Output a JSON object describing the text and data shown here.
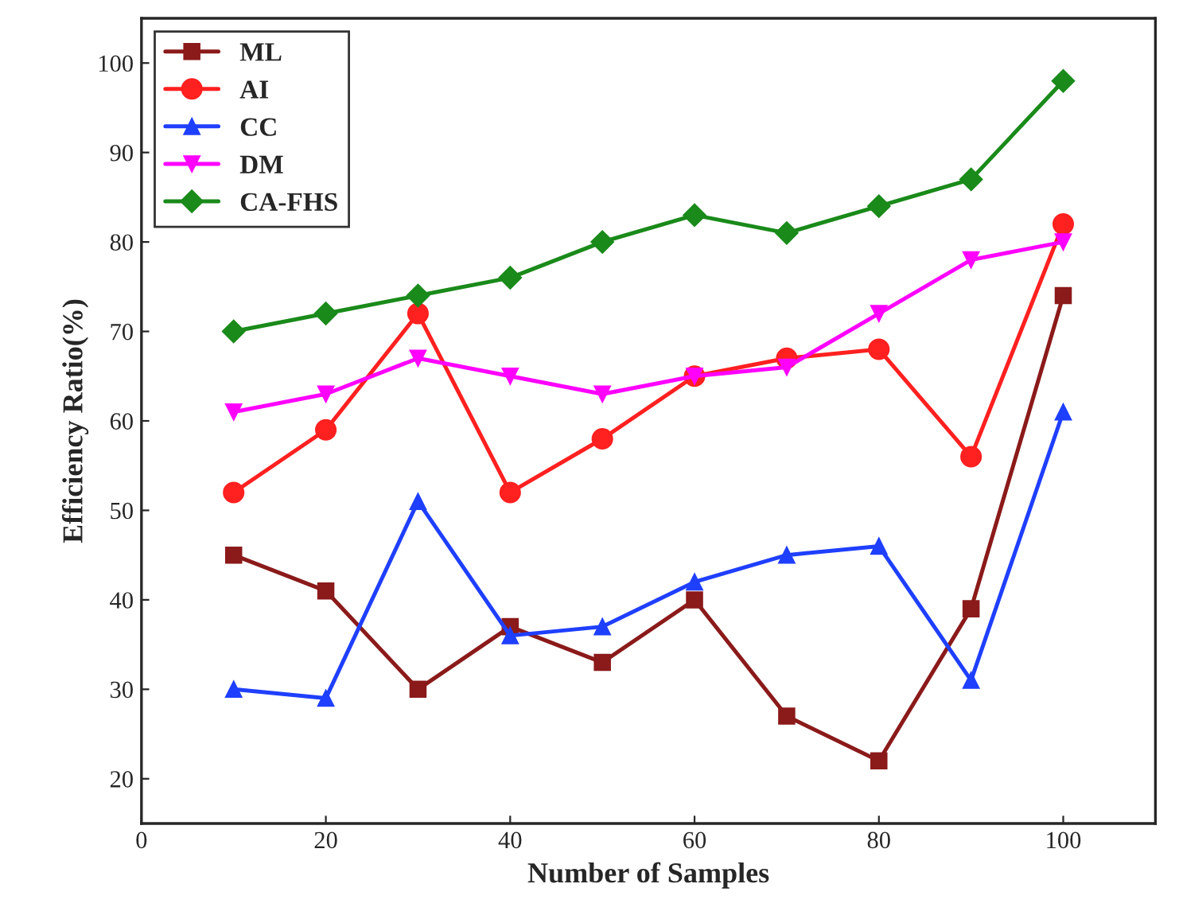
{
  "chart_data": {
    "type": "line",
    "xlabel": "Number of Samples",
    "ylabel": "Efficiency Ratio(%)",
    "x": [
      10,
      20,
      30,
      40,
      50,
      60,
      70,
      80,
      90,
      100
    ],
    "series": [
      {
        "name": "ML",
        "color": "#8b1a1a",
        "marker": "square",
        "values": [
          45,
          41,
          30,
          37,
          33,
          40,
          27,
          22,
          39,
          74
        ]
      },
      {
        "name": "AI",
        "color": "#ff2020",
        "marker": "circle",
        "values": [
          52,
          59,
          72,
          52,
          58,
          65,
          67,
          68,
          56,
          82
        ]
      },
      {
        "name": "CC",
        "color": "#1f3fff",
        "marker": "triangle",
        "values": [
          30,
          29,
          51,
          36,
          37,
          42,
          45,
          46,
          31,
          61
        ]
      },
      {
        "name": "DM",
        "color": "#ff00ff",
        "marker": "triangle_down",
        "values": [
          61,
          63,
          67,
          65,
          63,
          65,
          66,
          72,
          78,
          80
        ]
      },
      {
        "name": "CA-FHS",
        "color": "#1a8a1a",
        "marker": "diamond",
        "values": [
          70,
          72,
          74,
          76,
          80,
          83,
          81,
          84,
          87,
          98
        ]
      }
    ],
    "xlim": [
      0,
      110
    ],
    "xticks": [
      0,
      20,
      40,
      60,
      80,
      100
    ],
    "ylim": [
      15,
      105
    ],
    "yticks": [
      20,
      30,
      40,
      50,
      60,
      70,
      80,
      90,
      100
    ],
    "grid": false,
    "legend": "top left",
    "line_style": "solid"
  }
}
